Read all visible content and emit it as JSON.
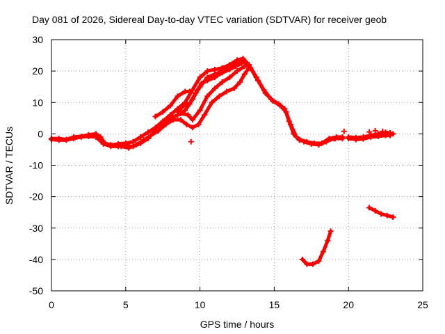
{
  "chart_data": {
    "type": "scatter",
    "title": "Day 081 of 2026, Sidereal Day-to-day VTEC variation (SDTVAR) for receiver geob",
    "xlabel": "GPS time / hours",
    "ylabel": "SDTVAR / TECUs",
    "xlim": [
      0,
      25
    ],
    "ylim": [
      -50,
      30
    ],
    "xticks": [
      0,
      5,
      10,
      15,
      20,
      25
    ],
    "yticks": [
      -50,
      -40,
      -30,
      -20,
      -10,
      0,
      10,
      20,
      30
    ],
    "grid": true,
    "color": "#ff0000",
    "series": [
      {
        "name": "main-band-a",
        "values": [
          [
            0,
            -1.5
          ],
          [
            0.5,
            -1.5
          ],
          [
            1,
            -1.8
          ],
          [
            1.5,
            -1
          ],
          [
            2,
            -0.8
          ],
          [
            2.5,
            -0.3
          ],
          [
            3,
            0
          ],
          [
            3.3,
            -1
          ],
          [
            3.6,
            -3
          ],
          [
            4,
            -3.5
          ],
          [
            4.5,
            -3.2
          ],
          [
            5,
            -3
          ],
          [
            5.5,
            -2.5
          ],
          [
            6,
            -1
          ],
          [
            6.5,
            0.5
          ],
          [
            7,
            2
          ],
          [
            7.5,
            4
          ],
          [
            8,
            6
          ],
          [
            8.5,
            8
          ],
          [
            9,
            10
          ],
          [
            9.5,
            14
          ],
          [
            10,
            18
          ],
          [
            10.5,
            20
          ],
          [
            11,
            20.5
          ],
          [
            11.5,
            21
          ],
          [
            12,
            22
          ],
          [
            12.5,
            23.5
          ],
          [
            12.9,
            24
          ],
          [
            13.3,
            22
          ],
          [
            13.8,
            18
          ],
          [
            14.3,
            14
          ],
          [
            14.8,
            11
          ],
          [
            15.3,
            9.5
          ],
          [
            15.7,
            8
          ],
          [
            16,
            4
          ],
          [
            16.3,
            0
          ],
          [
            16.7,
            -2
          ],
          [
            17.2,
            -2.5
          ],
          [
            17.7,
            -3
          ],
          [
            18.2,
            -3
          ],
          [
            18.7,
            -1.5
          ],
          [
            19.2,
            -1
          ],
          [
            19.6,
            -1
          ]
        ]
      },
      {
        "name": "main-band-b",
        "values": [
          [
            0,
            -1.8
          ],
          [
            0.5,
            -2
          ],
          [
            1,
            -2
          ],
          [
            1.5,
            -1.5
          ],
          [
            2,
            -1
          ],
          [
            2.5,
            -0.8
          ],
          [
            3,
            -1
          ],
          [
            3.5,
            -3.2
          ],
          [
            4,
            -4
          ],
          [
            4.5,
            -4
          ],
          [
            5,
            -3.8
          ],
          [
            5.5,
            -4
          ],
          [
            6,
            -3
          ],
          [
            6.5,
            -1.5
          ],
          [
            7,
            1
          ],
          [
            7.5,
            3
          ],
          [
            8,
            5
          ],
          [
            8.5,
            6
          ],
          [
            9,
            7.5
          ],
          [
            9.5,
            11
          ],
          [
            10,
            15
          ],
          [
            10.5,
            18
          ],
          [
            11,
            19
          ],
          [
            11.5,
            20
          ],
          [
            12,
            21
          ],
          [
            12.5,
            22.5
          ],
          [
            12.9,
            23
          ],
          [
            13.4,
            21
          ],
          [
            13.9,
            17
          ],
          [
            14.4,
            13
          ],
          [
            14.9,
            10.5
          ],
          [
            15.4,
            9
          ],
          [
            15.8,
            7
          ],
          [
            16.1,
            3
          ],
          [
            16.5,
            -1
          ],
          [
            17,
            -2.5
          ],
          [
            17.5,
            -3.2
          ],
          [
            18,
            -3.5
          ],
          [
            18.5,
            -2.5
          ],
          [
            19,
            -1.5
          ],
          [
            19.6,
            -1.5
          ]
        ]
      },
      {
        "name": "lower-branch",
        "values": [
          [
            4.7,
            -4
          ],
          [
            5.2,
            -4.5
          ],
          [
            5.7,
            -3.5
          ],
          [
            6.2,
            -2
          ],
          [
            6.7,
            -0.5
          ],
          [
            7.2,
            1
          ],
          [
            7.7,
            3
          ],
          [
            8.2,
            4.5
          ],
          [
            8.7,
            4.5
          ],
          [
            9.1,
            3
          ],
          [
            9.5,
            2
          ],
          [
            9.9,
            3
          ],
          [
            10.3,
            6
          ],
          [
            10.8,
            10
          ],
          [
            11.3,
            12
          ],
          [
            11.8,
            13.5
          ],
          [
            12.3,
            14.5
          ],
          [
            12.7,
            16.5
          ],
          [
            13,
            19
          ],
          [
            13.3,
            21
          ]
        ]
      },
      {
        "name": "upper-branch",
        "values": [
          [
            8.5,
            7
          ],
          [
            8.9,
            9
          ],
          [
            9.3,
            9.5
          ],
          [
            9.7,
            13
          ],
          [
            10.1,
            16
          ],
          [
            10.5,
            17
          ],
          [
            11,
            18
          ],
          [
            11.5,
            19.5
          ],
          [
            12,
            20.5
          ],
          [
            12.4,
            21.5
          ],
          [
            12.8,
            22.5
          ]
        ]
      },
      {
        "name": "midday-branch",
        "values": [
          [
            7,
            5.5
          ],
          [
            7.5,
            7
          ],
          [
            8,
            9
          ],
          [
            8.5,
            12
          ],
          [
            9,
            13.5
          ],
          [
            9.3,
            13.5
          ]
        ]
      },
      {
        "name": "inner-branch",
        "values": [
          [
            8.7,
            6.5
          ],
          [
            9.2,
            6
          ],
          [
            9.5,
            4.5
          ],
          [
            10,
            7.5
          ],
          [
            10.5,
            12
          ],
          [
            11,
            14.5
          ],
          [
            11.5,
            16.5
          ],
          [
            12,
            18
          ],
          [
            12.5,
            20
          ],
          [
            13,
            21.5
          ]
        ]
      },
      {
        "name": "evening-gap",
        "values": [
          [
            20,
            -1
          ],
          [
            20.5,
            -1.2
          ],
          [
            21,
            -1
          ],
          [
            21.5,
            -0.5
          ],
          [
            22,
            0
          ],
          [
            22.5,
            0.5
          ],
          [
            23,
            0
          ]
        ]
      },
      {
        "name": "evening-gap-b",
        "values": [
          [
            20,
            -1.5
          ],
          [
            20.5,
            -1.8
          ],
          [
            21,
            -1.6
          ],
          [
            21.5,
            -1
          ],
          [
            22,
            -0.8
          ],
          [
            22.5,
            -0.5
          ],
          [
            22.8,
            -0.5
          ]
        ]
      },
      {
        "name": "outlier-low-arc",
        "values": [
          [
            16.9,
            -40
          ],
          [
            17.2,
            -41.5
          ],
          [
            17.6,
            -41.5
          ],
          [
            18,
            -40.5
          ],
          [
            18.3,
            -37.5
          ],
          [
            18.6,
            -34
          ],
          [
            18.8,
            -31
          ]
        ]
      },
      {
        "name": "outlier-right-segment",
        "values": [
          [
            21.4,
            -23.5
          ],
          [
            21.8,
            -24.5
          ],
          [
            22.2,
            -25.5
          ],
          [
            22.6,
            -26
          ],
          [
            23,
            -26.5
          ]
        ]
      },
      {
        "name": "short-marks",
        "values": [
          [
            19.7,
            0.8
          ],
          [
            21.4,
            0.6
          ],
          [
            21.8,
            1
          ],
          [
            22.3,
            0.8
          ],
          [
            22.8,
            0.3
          ],
          [
            18.6,
            -2
          ],
          [
            19.1,
            -1.5
          ],
          [
            9.4,
            -2.5
          ]
        ]
      }
    ]
  }
}
